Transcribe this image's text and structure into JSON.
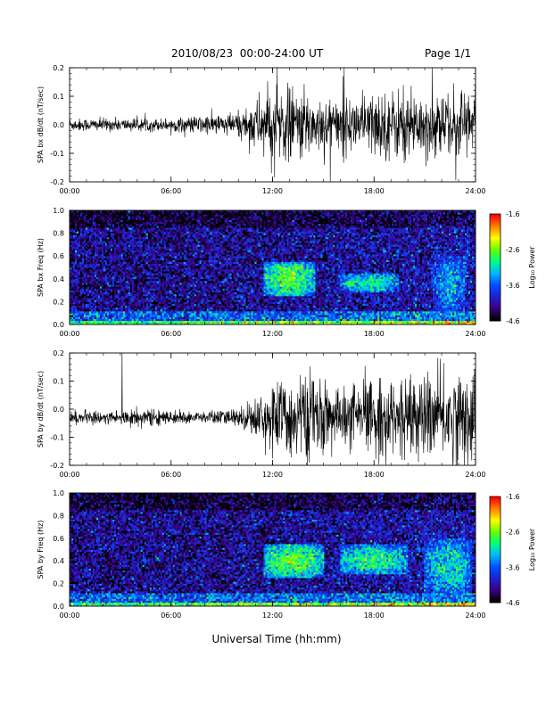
{
  "header": {
    "title": "2010/08/23  00:00-24:00 UT",
    "page": "Page 1/1"
  },
  "xaxis_label": "Universal Time (hh:mm)",
  "x_ticks": [
    "00:00",
    "06:00",
    "12:00",
    "18:00",
    "24:00"
  ],
  "colorbar": {
    "title": "Log₁₀ Power",
    "ticks": [
      "-1.6",
      "-2.6",
      "-3.6",
      "-4.6"
    ],
    "range": [
      -4.6,
      -1.6
    ],
    "colormap": [
      "#000000",
      "#3b0082",
      "#2020d0",
      "#0050ff",
      "#00b8ff",
      "#00ff80",
      "#60ff00",
      "#ffff00",
      "#ff8000",
      "#ff0000"
    ]
  },
  "chart_data": [
    {
      "type": "line",
      "ylabel": "SPA bx dB/dt (nT/sec)",
      "xlim": [
        0,
        24
      ],
      "ylim": [
        -0.2,
        0.2
      ],
      "y_ticks": [
        "0.2",
        "0.1",
        "0.0",
        "-0.1",
        "-0.2"
      ],
      "grid": false,
      "series": [
        {
          "values_hours": [
            0,
            2,
            4,
            6,
            8,
            10,
            11.5,
            12.5,
            14,
            16,
            18,
            20,
            22,
            24
          ],
          "amplitude": [
            0.02,
            0.02,
            0.02,
            0.02,
            0.03,
            0.04,
            0.1,
            0.12,
            0.1,
            0.08,
            0.1,
            0.11,
            0.1,
            0.13
          ]
        }
      ]
    },
    {
      "type": "heatmap",
      "ylabel": "SPA bx Freq (Hz)",
      "xlim": [
        0,
        24
      ],
      "ylim": [
        0.0,
        1.0
      ],
      "y_ticks": [
        "1.0",
        "0.8",
        "0.6",
        "0.4",
        "0.2",
        "0.0"
      ],
      "value_range": [
        -4.6,
        -1.6
      ],
      "features": [
        {
          "t": [
            11.5,
            14.5
          ],
          "f": [
            0.25,
            0.55
          ],
          "level": -2.7
        },
        {
          "t": [
            16.0,
            19.5
          ],
          "f": [
            0.28,
            0.45
          ],
          "level": -3.0
        },
        {
          "t": [
            21.5,
            23.5
          ],
          "f": [
            0.1,
            0.6
          ],
          "level": -3.3
        }
      ]
    },
    {
      "type": "line",
      "ylabel": "SPA by dB/dt (nT/sec)",
      "xlim": [
        0,
        24
      ],
      "ylim": [
        -0.2,
        0.2
      ],
      "y_ticks": [
        "0.2",
        "0.1",
        "0.0",
        "-0.1",
        "-0.2"
      ],
      "grid": false,
      "series": [
        {
          "values_hours": [
            0,
            2,
            4,
            6,
            8,
            10,
            11.5,
            12.5,
            14,
            16,
            18,
            20,
            22,
            24
          ],
          "amplitude": [
            0.02,
            0.02,
            0.03,
            0.02,
            0.02,
            0.03,
            0.08,
            0.12,
            0.14,
            0.09,
            0.13,
            0.11,
            0.14,
            0.15
          ]
        }
      ]
    },
    {
      "type": "heatmap",
      "ylabel": "SPA by Freq (Hz)",
      "xlim": [
        0,
        24
      ],
      "ylim": [
        0.0,
        1.0
      ],
      "y_ticks": [
        "1.0",
        "0.8",
        "0.6",
        "0.4",
        "0.2",
        "0.0"
      ],
      "value_range": [
        -4.6,
        -1.6
      ],
      "features": [
        {
          "t": [
            11.5,
            15.0
          ],
          "f": [
            0.25,
            0.55
          ],
          "level": -2.7
        },
        {
          "t": [
            16.0,
            20.0
          ],
          "f": [
            0.28,
            0.55
          ],
          "level": -2.9
        },
        {
          "t": [
            21.0,
            23.8
          ],
          "f": [
            0.1,
            0.6
          ],
          "level": -3.1
        }
      ]
    }
  ]
}
